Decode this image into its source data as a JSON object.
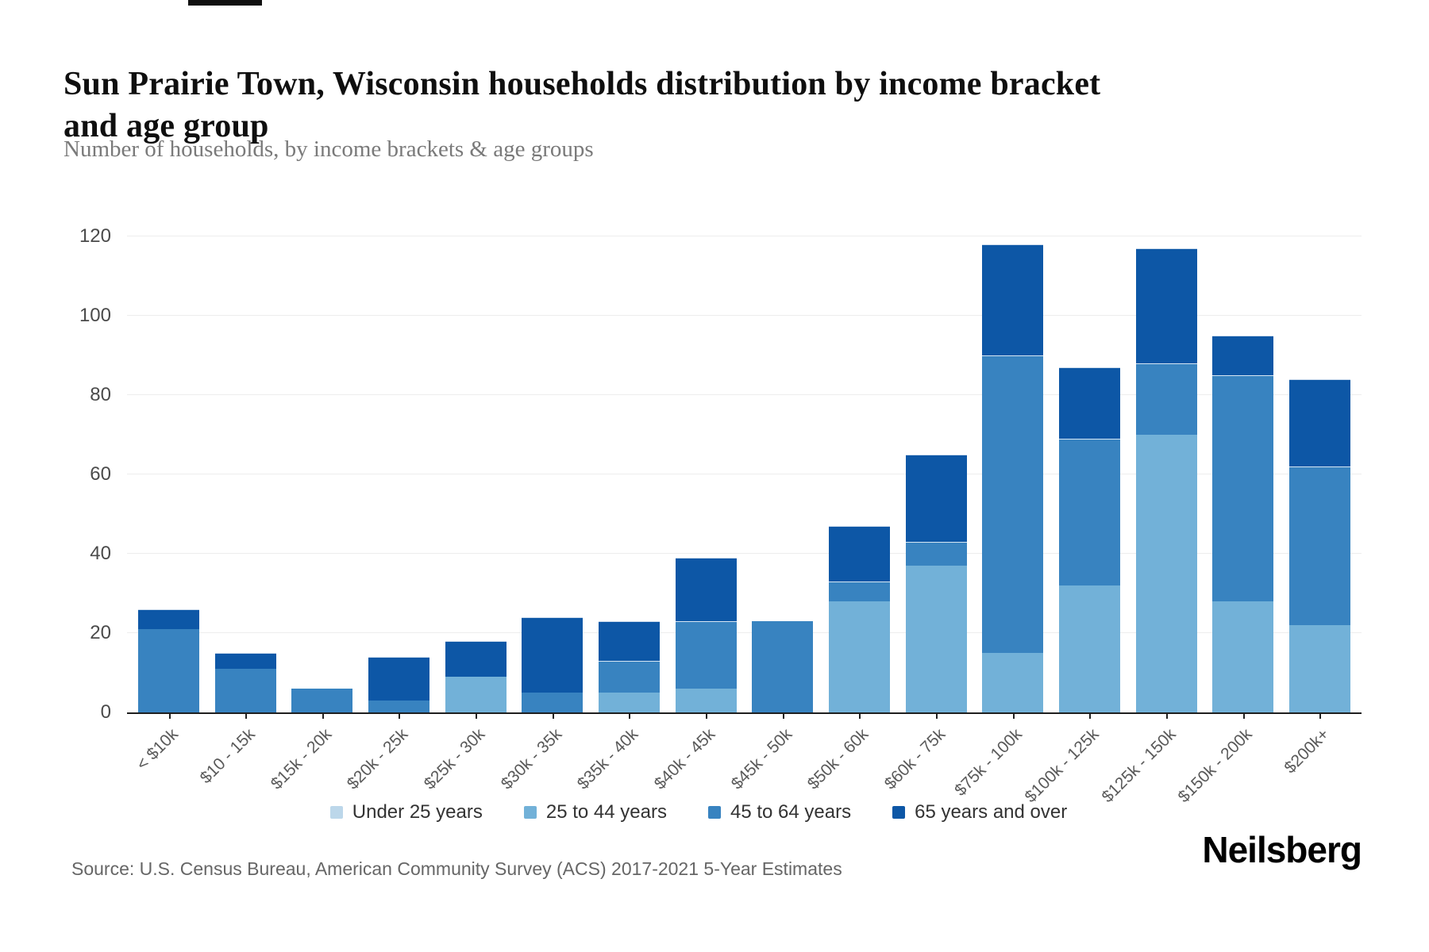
{
  "header": {
    "title": "Sun Prairie Town, Wisconsin households distribution by income bracket and age group",
    "subtitle": "Number of households, by income brackets & age groups"
  },
  "chart_data": {
    "type": "bar",
    "stacked": true,
    "title": "Sun Prairie Town, Wisconsin households distribution by income bracket and age group",
    "subtitle": "Number of households, by income brackets & age groups",
    "xlabel": "",
    "ylabel": "",
    "ylim": [
      0,
      120
    ],
    "yticks": [
      0,
      20,
      40,
      60,
      80,
      100,
      120
    ],
    "grid": true,
    "legend_position": "bottom",
    "categories": [
      "< $10k",
      "$10 - 15k",
      "$15k - 20k",
      "$20k - 25k",
      "$25k - 30k",
      "$30k - 35k",
      "$35k - 40k",
      "$40k - 45k",
      "$45k - 50k",
      "$50k - 60k",
      "$60k - 75k",
      "$75k - 100k",
      "$100k - 125k",
      "$125k - 150k",
      "$150k - 200k",
      "$200k+"
    ],
    "series": [
      {
        "name": "Under 25 years",
        "color": "#bcd7ea",
        "values": [
          0,
          0,
          0,
          0,
          0,
          0,
          0,
          0,
          0,
          0,
          0,
          0,
          0,
          0,
          0,
          0
        ]
      },
      {
        "name": "25 to 44 years",
        "color": "#72b1d8",
        "values": [
          0,
          0,
          0,
          0,
          9,
          0,
          5,
          6,
          0,
          28,
          37,
          15,
          32,
          70,
          28,
          22
        ]
      },
      {
        "name": "45 to 64 years",
        "color": "#3883c0",
        "values": [
          21,
          11,
          6,
          3,
          0,
          5,
          8,
          17,
          23,
          5,
          6,
          75,
          37,
          18,
          57,
          40
        ]
      },
      {
        "name": "65 years and over",
        "color": "#0d57a6",
        "values": [
          5,
          4,
          0,
          11,
          9,
          19,
          10,
          16,
          0,
          14,
          22,
          28,
          18,
          29,
          10,
          22
        ]
      }
    ],
    "bar_totals": [
      26,
      15,
      6,
      14,
      18,
      24,
      23,
      39,
      23,
      47,
      65,
      118,
      87,
      117,
      95,
      84
    ]
  },
  "footer": {
    "source": "Source: U.S. Census Bureau, American Community Survey (ACS) 2017-2021 5-Year Estimates",
    "logo": "Neilsberg"
  }
}
